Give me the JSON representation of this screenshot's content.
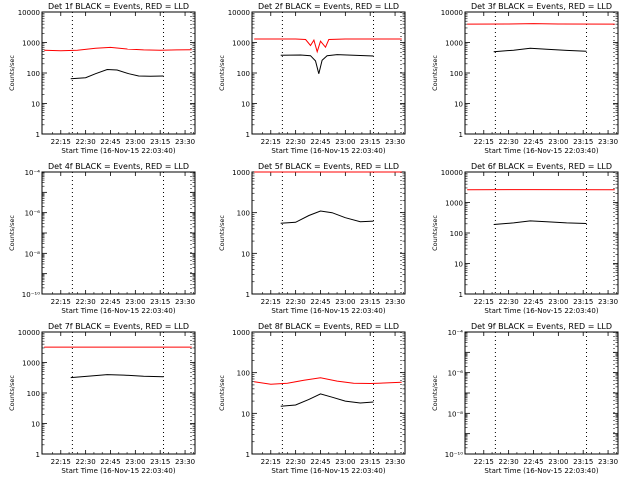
{
  "colors": {
    "events": "#000000",
    "lld": "#ff0000",
    "axis": "#000000",
    "background": "#ffffff"
  },
  "x_ticks": [
    "22:15",
    "22:30",
    "22:45",
    "23:00",
    "23:15",
    "23:30"
  ],
  "x_label": "Start Time (16-Nov-15 22:03:40)",
  "y_label": "Counts/sec",
  "chart_data": [
    {
      "type": "line",
      "title": "Det 1f BLACK = Events, RED = LLD",
      "x": [
        "22:15",
        "22:30",
        "22:45",
        "23:00",
        "23:15",
        "23:30"
      ],
      "y_scale": "log",
      "ylim": [
        1,
        10000
      ],
      "y_ticks": [
        "1",
        "10",
        "100",
        "1000",
        "10000"
      ],
      "markers": [
        "22:22",
        "23:17"
      ],
      "series": [
        {
          "name": "Events",
          "color": "#000000",
          "points": [
            [
              "22:21",
              65
            ],
            [
              "22:30",
              70
            ],
            [
              "22:36",
              95
            ],
            [
              "22:43",
              130
            ],
            [
              "22:49",
              125
            ],
            [
              "22:56",
              95
            ],
            [
              "23:02",
              80
            ],
            [
              "23:09",
              78
            ],
            [
              "23:17",
              80
            ]
          ]
        },
        {
          "name": "LLD",
          "color": "#ff0000",
          "points": [
            [
              "22:05",
              560
            ],
            [
              "22:15",
              540
            ],
            [
              "22:25",
              560
            ],
            [
              "22:36",
              650
            ],
            [
              "22:45",
              690
            ],
            [
              "22:55",
              610
            ],
            [
              "23:05",
              570
            ],
            [
              "23:15",
              560
            ],
            [
              "23:25",
              570
            ],
            [
              "23:34",
              580
            ]
          ]
        }
      ]
    },
    {
      "type": "line",
      "title": "Det 2f BLACK = Events, RED = LLD",
      "x": [
        "22:15",
        "22:30",
        "22:45",
        "23:00",
        "23:15",
        "23:30"
      ],
      "y_scale": "log",
      "ylim": [
        1,
        10000
      ],
      "y_ticks": [
        "1",
        "10",
        "100",
        "1000",
        "10000"
      ],
      "markers": [
        "22:22",
        "23:17"
      ],
      "series": [
        {
          "name": "Events",
          "color": "#000000",
          "points": [
            [
              "22:21",
              380
            ],
            [
              "22:33",
              390
            ],
            [
              "22:39",
              370
            ],
            [
              "22:42",
              250
            ],
            [
              "22:44",
              95
            ],
            [
              "22:46",
              260
            ],
            [
              "22:49",
              370
            ],
            [
              "22:55",
              400
            ],
            [
              "23:05",
              380
            ],
            [
              "23:17",
              360
            ]
          ]
        },
        {
          "name": "LLD",
          "color": "#ff0000",
          "points": [
            [
              "22:05",
              1300
            ],
            [
              "22:30",
              1300
            ],
            [
              "22:36",
              1250
            ],
            [
              "22:39",
              800
            ],
            [
              "22:41",
              1200
            ],
            [
              "22:43",
              500
            ],
            [
              "22:45",
              1100
            ],
            [
              "22:48",
              700
            ],
            [
              "22:50",
              1250
            ],
            [
              "23:00",
              1300
            ],
            [
              "23:34",
              1300
            ]
          ]
        }
      ]
    },
    {
      "type": "line",
      "title": "Det 3f BLACK = Events, RED = LLD",
      "x": [
        "22:15",
        "22:30",
        "22:45",
        "23:00",
        "23:15",
        "23:30"
      ],
      "y_scale": "log",
      "ylim": [
        1,
        10000
      ],
      "y_ticks": [
        "1",
        "10",
        "100",
        "1000",
        "10000"
      ],
      "markers": [
        "22:22",
        "23:17"
      ],
      "series": [
        {
          "name": "Events",
          "color": "#000000",
          "points": [
            [
              "22:21",
              500
            ],
            [
              "22:33",
              560
            ],
            [
              "22:43",
              650
            ],
            [
              "22:53",
              600
            ],
            [
              "23:05",
              550
            ],
            [
              "23:17",
              520
            ]
          ]
        },
        {
          "name": "LLD",
          "color": "#ff0000",
          "points": [
            [
              "22:05",
              4000
            ],
            [
              "22:30",
              4050
            ],
            [
              "22:45",
              4150
            ],
            [
              "23:00",
              4050
            ],
            [
              "23:34",
              4000
            ]
          ]
        }
      ]
    },
    {
      "type": "line",
      "title": "Det 4f BLACK = Events, RED = LLD",
      "x": [
        "22:15",
        "22:30",
        "22:45",
        "23:00",
        "23:15",
        "23:30"
      ],
      "y_scale": "log",
      "ylim": [
        1e-10,
        0.0001
      ],
      "y_ticks": [
        "10⁻¹⁰",
        "10⁻⁸",
        "10⁻⁶",
        "10⁻⁴"
      ],
      "markers": [
        "22:22",
        "23:17"
      ],
      "series": []
    },
    {
      "type": "line",
      "title": "Det 5f BLACK = Events, RED = LLD",
      "x": [
        "22:15",
        "22:30",
        "22:45",
        "23:00",
        "23:15",
        "23:30"
      ],
      "y_scale": "log",
      "ylim": [
        1,
        1000
      ],
      "y_ticks": [
        "1",
        "10",
        "100",
        "1000"
      ],
      "markers": [
        "22:22",
        "23:17"
      ],
      "series": [
        {
          "name": "Events",
          "color": "#000000",
          "points": [
            [
              "22:21",
              55
            ],
            [
              "22:30",
              58
            ],
            [
              "22:38",
              85
            ],
            [
              "22:45",
              110
            ],
            [
              "22:52",
              100
            ],
            [
              "23:00",
              75
            ],
            [
              "23:09",
              60
            ],
            [
              "23:17",
              62
            ]
          ]
        },
        {
          "name": "LLD",
          "color": "#ff0000",
          "points": [
            [
              "22:05",
              1000
            ],
            [
              "23:34",
              1000
            ]
          ]
        }
      ]
    },
    {
      "type": "line",
      "title": "Det 6f BLACK = Events, RED = LLD",
      "x": [
        "22:15",
        "22:30",
        "22:45",
        "23:00",
        "23:15",
        "23:30"
      ],
      "y_scale": "log",
      "ylim": [
        1,
        10000
      ],
      "y_ticks": [
        "1",
        "10",
        "100",
        "1000",
        "10000"
      ],
      "markers": [
        "22:22",
        "23:17"
      ],
      "series": [
        {
          "name": "Events",
          "color": "#000000",
          "points": [
            [
              "22:21",
              190
            ],
            [
              "22:33",
              215
            ],
            [
              "22:43",
              250
            ],
            [
              "22:53",
              235
            ],
            [
              "23:05",
              215
            ],
            [
              "23:17",
              205
            ]
          ]
        },
        {
          "name": "LLD",
          "color": "#ff0000",
          "points": [
            [
              "22:05",
              2600
            ],
            [
              "22:45",
              2650
            ],
            [
              "23:34",
              2600
            ]
          ]
        }
      ]
    },
    {
      "type": "line",
      "title": "Det 7f BLACK = Events, RED = LLD",
      "x": [
        "22:15",
        "22:30",
        "22:45",
        "23:00",
        "23:15",
        "23:30"
      ],
      "y_scale": "log",
      "ylim": [
        1,
        10000
      ],
      "y_ticks": [
        "1",
        "10",
        "100",
        "1000",
        "10000"
      ],
      "markers": [
        "22:22",
        "23:17"
      ],
      "series": [
        {
          "name": "Events",
          "color": "#000000",
          "points": [
            [
              "22:21",
              320
            ],
            [
              "22:33",
              360
            ],
            [
              "22:43",
              400
            ],
            [
              "22:53",
              385
            ],
            [
              "23:05",
              355
            ],
            [
              "23:17",
              340
            ]
          ]
        },
        {
          "name": "LLD",
          "color": "#ff0000",
          "points": [
            [
              "22:05",
              3200
            ],
            [
              "23:34",
              3200
            ]
          ]
        }
      ]
    },
    {
      "type": "line",
      "title": "Det 8f BLACK = Events, RED = LLD",
      "x": [
        "22:15",
        "22:30",
        "22:45",
        "23:00",
        "23:15",
        "23:30"
      ],
      "y_scale": "log",
      "ylim": [
        1,
        1000
      ],
      "y_ticks": [
        "1",
        "10",
        "100",
        "1000"
      ],
      "markers": [
        "22:22",
        "23:17"
      ],
      "series": [
        {
          "name": "Events",
          "color": "#000000",
          "points": [
            [
              "22:21",
              15
            ],
            [
              "22:30",
              16
            ],
            [
              "22:38",
              22
            ],
            [
              "22:45",
              30
            ],
            [
              "22:52",
              25
            ],
            [
              "23:00",
              20
            ],
            [
              "23:09",
              18
            ],
            [
              "23:17",
              19
            ]
          ]
        },
        {
          "name": "LLD",
          "color": "#ff0000",
          "points": [
            [
              "22:05",
              60
            ],
            [
              "22:15",
              52
            ],
            [
              "22:25",
              55
            ],
            [
              "22:35",
              65
            ],
            [
              "22:45",
              75
            ],
            [
              "22:55",
              62
            ],
            [
              "23:05",
              55
            ],
            [
              "23:15",
              54
            ],
            [
              "23:25",
              56
            ],
            [
              "23:34",
              58
            ]
          ]
        }
      ]
    },
    {
      "type": "line",
      "title": "Det 9f BLACK = Events, RED = LLD",
      "x": [
        "22:15",
        "22:30",
        "22:45",
        "23:00",
        "23:15",
        "23:30"
      ],
      "y_scale": "log",
      "ylim": [
        1e-10,
        0.0001
      ],
      "y_ticks": [
        "10⁻¹⁰",
        "10⁻⁸",
        "10⁻⁶",
        "10⁻⁴"
      ],
      "markers": [
        "22:22",
        "23:17"
      ],
      "series": []
    }
  ]
}
